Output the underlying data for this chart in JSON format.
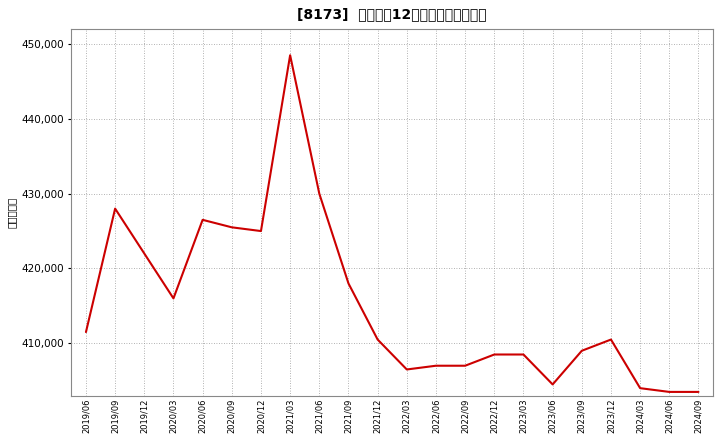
{
  "title": "[8173]  売上高の12か月移動合計の推移",
  "ylabel": "（百万円）",
  "line_color": "#cc0000",
  "background_color": "#ffffff",
  "plot_background_color": "#ffffff",
  "grid_color": "#999999",
  "ylim": [
    403000,
    452000
  ],
  "yticks": [
    410000,
    420000,
    430000,
    440000,
    450000
  ],
  "data_keys": [
    "2019/06",
    "2019/09",
    "2019/12",
    "2020/03",
    "2020/06",
    "2020/09",
    "2020/12",
    "2021/03",
    "2021/06",
    "2021/09",
    "2021/12",
    "2022/03",
    "2022/06",
    "2022/09",
    "2022/12",
    "2023/03",
    "2023/06",
    "2023/09",
    "2023/12",
    "2024/03",
    "2024/06",
    "2024/09"
  ],
  "data_values": [
    411500,
    428000,
    422000,
    416000,
    426500,
    425500,
    425000,
    448500,
    430000,
    418000,
    410500,
    406500,
    407000,
    407000,
    408500,
    408500,
    404500,
    409000,
    410500,
    404000,
    403500,
    403500
  ]
}
